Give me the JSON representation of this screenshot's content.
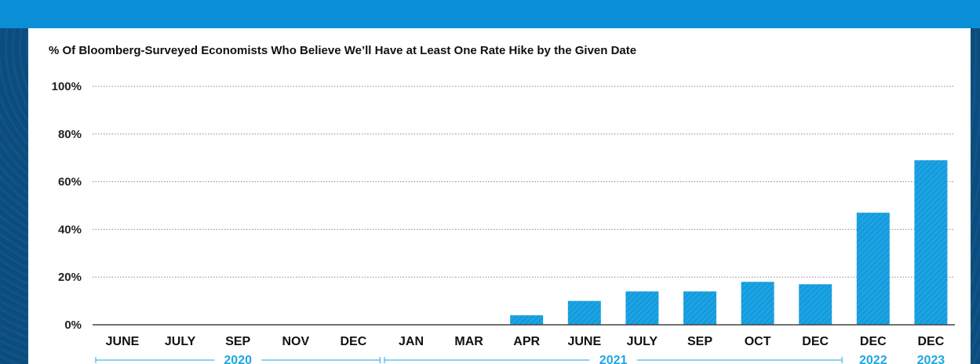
{
  "chart_data": {
    "type": "bar",
    "title": "% Of Bloomberg-Surveyed Economists Who Believe We’ll Have at Least One Rate Hike by the Given Date",
    "categories": [
      "JUNE",
      "JULY",
      "SEP",
      "NOV",
      "DEC",
      "JAN",
      "MAR",
      "APR",
      "JUNE",
      "JULY",
      "SEP",
      "OCT",
      "DEC",
      "DEC",
      "DEC"
    ],
    "values": [
      0,
      0,
      0,
      0,
      0,
      0,
      0,
      4,
      10,
      14,
      14,
      18,
      17,
      47,
      69
    ],
    "year_groups": [
      {
        "label": "2020",
        "start": 0,
        "end": 4
      },
      {
        "label": "2021",
        "start": 5,
        "end": 12
      },
      {
        "label": "2022",
        "start": 13,
        "end": 13
      },
      {
        "label": "2023",
        "start": 14,
        "end": 14
      }
    ],
    "y_ticks": [
      "0%",
      "20%",
      "40%",
      "60%",
      "80%",
      "100%"
    ],
    "ylim": [
      0,
      100
    ],
    "grid": true,
    "colors": {
      "bar": "#1ca3e3",
      "year": "#1da7e3",
      "frame": "#0a8ed6",
      "background": "#0f2a4d"
    }
  }
}
